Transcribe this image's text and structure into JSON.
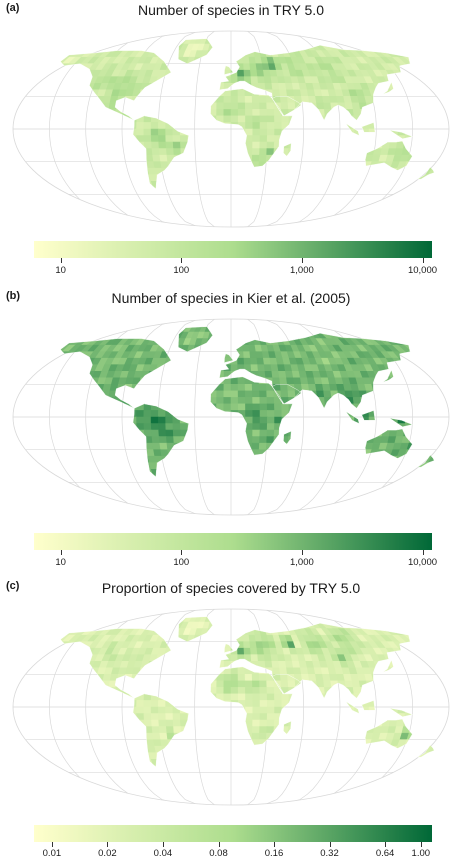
{
  "panels": [
    {
      "label": "(a)",
      "title": "Number of species in TRY 5.0",
      "scale": "log",
      "ticks": [
        {
          "value": 10,
          "label": "10"
        },
        {
          "value": 100,
          "label": "100"
        },
        {
          "value": 1000,
          "label": "1,000"
        },
        {
          "value": 10000,
          "label": "10,000"
        }
      ],
      "range": [
        6,
        12000
      ]
    },
    {
      "label": "(b)",
      "title": "Number of species in Kier et al. (2005)",
      "scale": "log",
      "ticks": [
        {
          "value": 10,
          "label": "10"
        },
        {
          "value": 100,
          "label": "100"
        },
        {
          "value": 1000,
          "label": "1,000"
        },
        {
          "value": 10000,
          "label": "10,000"
        }
      ],
      "range": [
        6,
        12000
      ]
    },
    {
      "label": "(c)",
      "title": "Proportion of species covered by TRY 5.0",
      "scale": "log",
      "ticks": [
        {
          "value": 0.01,
          "label": "0.01"
        },
        {
          "value": 0.02,
          "label": "0.02"
        },
        {
          "value": 0.04,
          "label": "0.04"
        },
        {
          "value": 0.08,
          "label": "0.08"
        },
        {
          "value": 0.16,
          "label": "0.16"
        },
        {
          "value": 0.32,
          "label": "0.32"
        },
        {
          "value": 0.64,
          "label": "0.64"
        },
        {
          "value": 1.0,
          "label": "1.00"
        }
      ],
      "range": [
        0.008,
        1.15
      ]
    }
  ],
  "colors": {
    "low": "#ffffcc",
    "mid": "#addd8e",
    "high": "#006837",
    "graticule": "#d9d9d9"
  }
}
